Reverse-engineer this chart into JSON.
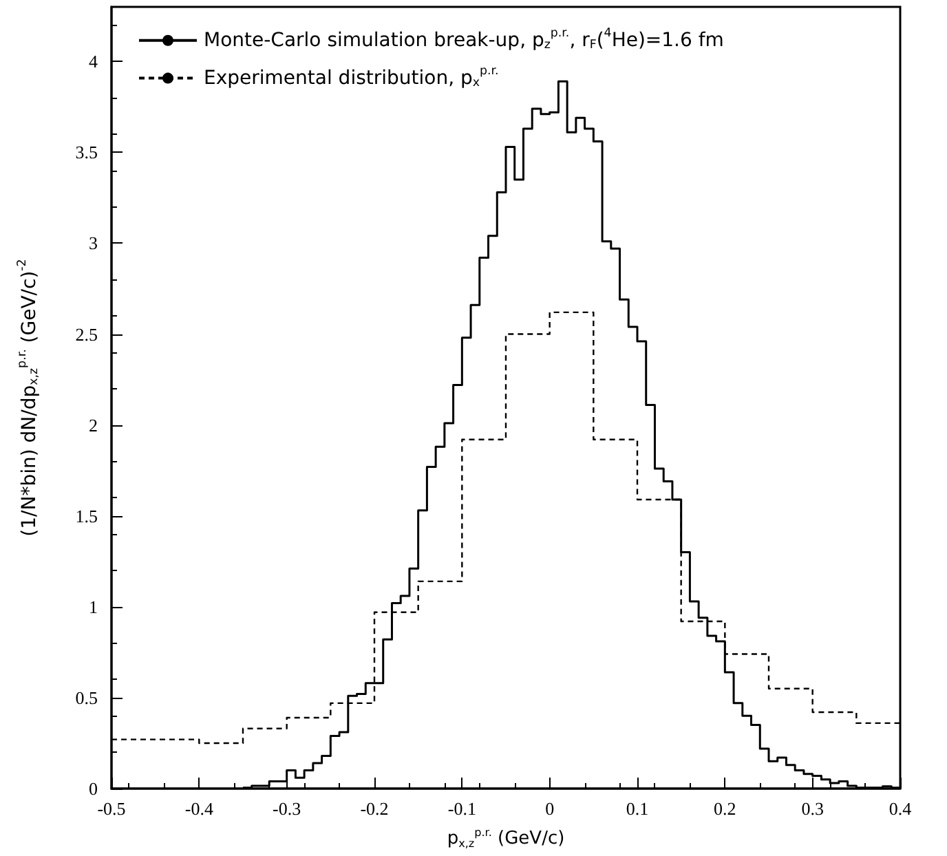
{
  "chart_data": {
    "type": "step",
    "xlabel": "p$_{x,z}$$^{p.r.}$ (GeV/c)",
    "ylabel": "(1/N*bin) dN/dp$_{x,z}$$^{p.r.}$ (GeV/c)$^{-2}$",
    "xlim": [
      -0.5,
      0.4
    ],
    "xticks": [
      -0.5,
      -0.4,
      -0.3,
      -0.2,
      -0.1,
      0,
      0.1,
      0.2,
      0.3,
      0.4
    ],
    "ylim": [
      0,
      4.3
    ],
    "yticks": [
      0,
      0.5,
      1,
      1.5,
      2,
      2.5,
      3,
      3.5,
      4
    ],
    "legend": "top left",
    "grid": false,
    "series": [
      {
        "name": "Monte-Carlo simulation break-up, p$_{z}$$^{p.r.}$, r$_{F}$($^{4}$He)=1.6 fm",
        "color": "#000000",
        "line_style": "solid",
        "x": [
          -0.35,
          -0.34,
          -0.33,
          -0.32,
          -0.31,
          -0.3,
          -0.29,
          -0.28,
          -0.27,
          -0.26,
          -0.25,
          -0.24,
          -0.23,
          -0.22,
          -0.21,
          -0.2,
          -0.19,
          -0.18,
          -0.17,
          -0.16,
          -0.15,
          -0.14,
          -0.13,
          -0.12,
          -0.11,
          -0.1,
          -0.09,
          -0.08,
          -0.07,
          -0.06,
          -0.05,
          -0.04,
          -0.03,
          -0.02,
          -0.01,
          0,
          0.01,
          0.02,
          0.03,
          0.04,
          0.05,
          0.06,
          0.07,
          0.08,
          0.09,
          0.1,
          0.11,
          0.12,
          0.13,
          0.14,
          0.15,
          0.16,
          0.17,
          0.18,
          0.19,
          0.2,
          0.21,
          0.22,
          0.23,
          0.24,
          0.25,
          0.26,
          0.27,
          0.28,
          0.29,
          0.3,
          0.31,
          0.32,
          0.33,
          0.34,
          0.35,
          0.36,
          0.37,
          0.38,
          0.39,
          0.4
        ],
        "values": [
          0.005,
          0.015,
          0.015,
          0.04,
          0.04,
          0.1,
          0.06,
          0.1,
          0.14,
          0.18,
          0.29,
          0.31,
          0.51,
          0.52,
          0.58,
          0.58,
          0.82,
          1.02,
          1.06,
          1.21,
          1.53,
          1.77,
          1.88,
          2.01,
          2.22,
          2.48,
          2.66,
          2.92,
          3.04,
          3.28,
          3.53,
          3.35,
          3.63,
          3.74,
          3.71,
          3.72,
          3.89,
          3.61,
          3.69,
          3.63,
          3.56,
          3.01,
          2.97,
          2.69,
          2.54,
          2.46,
          2.11,
          1.76,
          1.69,
          1.59,
          1.3,
          1.03,
          0.94,
          0.84,
          0.81,
          0.64,
          0.47,
          0.4,
          0.35,
          0.22,
          0.15,
          0.17,
          0.13,
          0.1,
          0.08,
          0.07,
          0.05,
          0.03,
          0.04,
          0.015,
          0.005,
          0.005,
          0.005,
          0.012,
          0.005,
          0.005
        ]
      },
      {
        "name": "Experimental distribution, p$_{x}$$^{p.r.}$",
        "color": "#000000",
        "line_style": "dashed",
        "x": [
          -0.5,
          -0.45,
          -0.4,
          -0.35,
          -0.3,
          -0.25,
          -0.2,
          -0.15,
          -0.1,
          -0.05,
          0,
          0.05,
          0.1,
          0.15,
          0.2,
          0.25,
          0.3,
          0.35,
          0.4
        ],
        "values": [
          0.27,
          0.27,
          0.25,
          0.33,
          0.39,
          0.47,
          0.97,
          1.14,
          1.92,
          2.5,
          2.62,
          1.92,
          1.59,
          0.92,
          0.74,
          0.55,
          0.42,
          0.36,
          0.36
        ]
      }
    ]
  }
}
